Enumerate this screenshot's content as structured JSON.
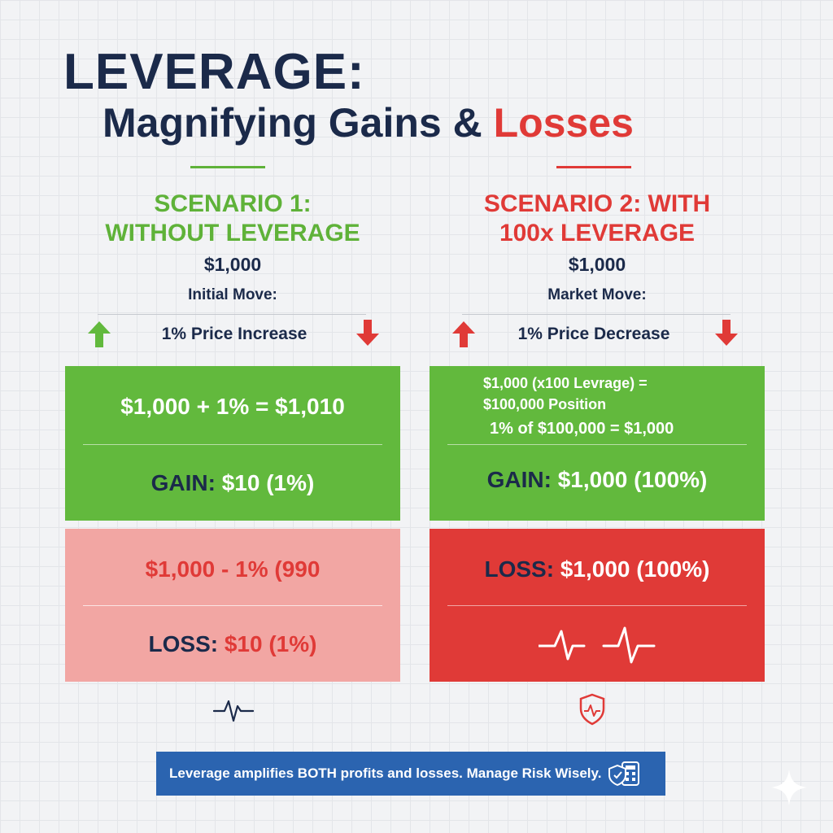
{
  "title": {
    "line1": "LEVERAGE:",
    "line2_main": "Magnifying Gains & ",
    "line2_accent": "Losses"
  },
  "colors": {
    "navy": "#1b2a4a",
    "green": "#62b93d",
    "red": "#e03a37",
    "pink": "#f2a6a3",
    "blue_banner": "#2b64b0"
  },
  "scenario1": {
    "heading_line1": "SCENARIO 1:",
    "heading_line2": "WITHOUT LEVERAGE",
    "amount": "$1,000",
    "subtitle": "Initial Move:",
    "move_text": "1% Price Increase",
    "gain_box": {
      "equation": "$1,000 + 1% = $1,010",
      "label": "GAIN:",
      "value": "$10 (1%)"
    },
    "loss_box": {
      "equation": "$1,000 - 1% (990",
      "label": "LOSS:",
      "value": "$10 (1%)"
    },
    "footer_icon": "heartbeat-icon"
  },
  "scenario2": {
    "heading_line1": "SCENARIO 2: WITH",
    "heading_line2": "100x LEVERAGE",
    "amount": "$1,000",
    "subtitle": "Market Move:",
    "move_text": "1% Price Decrease",
    "gain_box": {
      "line1": "$1,000 (x100 Levrage) =",
      "line2": "$100,000 Position",
      "line3": "1% of $100,000 = $1,000",
      "label": "GAIN:",
      "value": "$1,000 (100%)"
    },
    "loss_box": {
      "label": "LOSS:",
      "value": "$1,000 (100%)"
    },
    "footer_icon": "shield-heartbeat-icon"
  },
  "banner": {
    "text": "Leverage amplifies BOTH profits and losses. Manage Risk Wisely.",
    "icon": "shield-calculator-icon"
  }
}
